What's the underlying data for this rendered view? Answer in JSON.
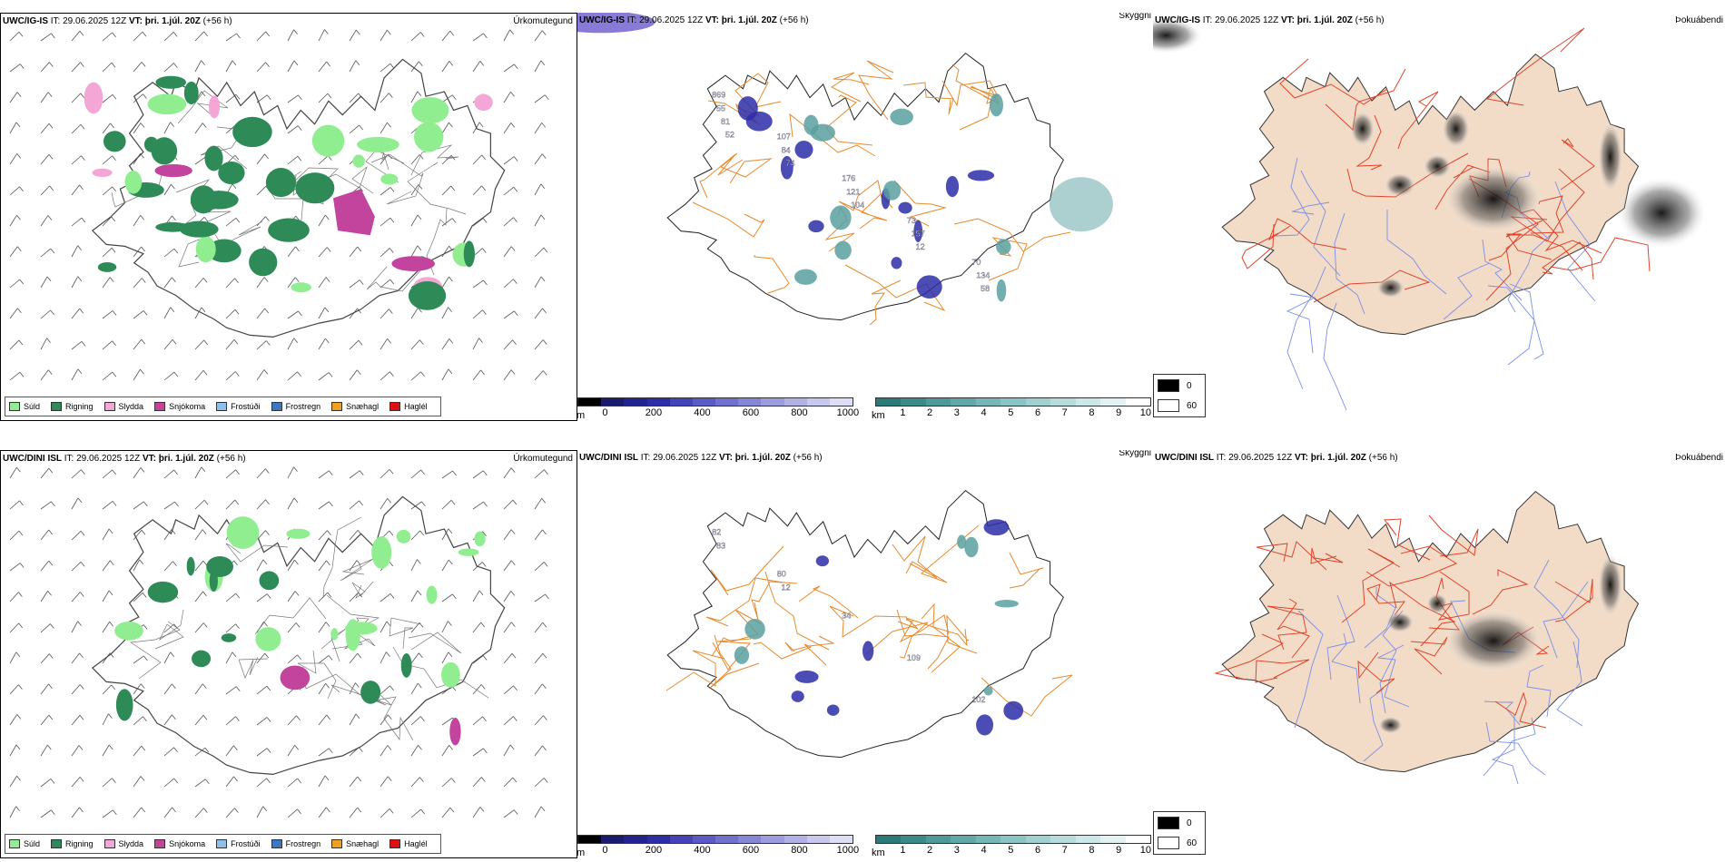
{
  "rows": [
    {
      "model": "UWC/IG-IS",
      "it_label": "IT:",
      "it_value": "29.06.2025 12Z",
      "vt_label": "VT:",
      "vt_value": "þri. 1.júl. 20Z",
      "lead": "(+56 h)"
    },
    {
      "model": "UWC/DINI ISL",
      "it_label": "IT:",
      "it_value": "29.06.2025 12Z",
      "vt_label": "VT:",
      "vt_value": "þri. 1.júl. 20Z",
      "lead": "(+56 h)"
    }
  ],
  "variables": {
    "precip_type": "Úrkomutegund",
    "cloud_ceiling": "Skyggni",
    "fog": "Þokuábendi"
  },
  "precip_legend": [
    {
      "label": "Súld",
      "color": "#90ee90"
    },
    {
      "label": "Rigning",
      "color": "#2e8b57"
    },
    {
      "label": "Slydda",
      "color": "#f4a6d7"
    },
    {
      "label": "Snjókoma",
      "color": "#c2449d"
    },
    {
      "label": "Frostúði",
      "color": "#8fbfef"
    },
    {
      "label": "Frostregn",
      "color": "#3b78c4"
    },
    {
      "label": "Snæhagl",
      "color": "#f0a020"
    },
    {
      "label": "Haglél",
      "color": "#e01010"
    }
  ],
  "height_bar": {
    "unit": "m",
    "ticks": [
      "0",
      "200",
      "400",
      "600",
      "800",
      "1000"
    ],
    "colors": [
      "#000000",
      "#1a1a6e",
      "#232391",
      "#2d2da8",
      "#4444b8",
      "#5a5ac4",
      "#7070ce",
      "#8686d6",
      "#9c9cde",
      "#b2b2e6",
      "#c8c8ee",
      "#dedef6"
    ]
  },
  "km_bar": {
    "unit": "km",
    "ticks": [
      "1",
      "2",
      "3",
      "4",
      "5",
      "6",
      "7",
      "8",
      "9",
      "10"
    ],
    "colors": [
      "#2a7a7a",
      "#3a8a8a",
      "#4e9a9a",
      "#62a8a8",
      "#76b6b6",
      "#8ac4c4",
      "#a0d0d0",
      "#b6dcdc",
      "#cce8e8",
      "#e2f2f2",
      "#ffffff"
    ]
  },
  "fog_legend": [
    {
      "label": "0",
      "color": "#000000"
    },
    {
      "label": "60",
      "color": "#ffffff"
    }
  ],
  "map_labels_top": [
    "869",
    "107",
    "176",
    "73",
    "70",
    "55",
    "84",
    "121",
    "157",
    "134",
    "81",
    "74",
    "104",
    "12",
    "58",
    "52"
  ],
  "map_labels_bottom": [
    "82",
    "80",
    "34",
    "109",
    "102",
    "83",
    "12"
  ]
}
